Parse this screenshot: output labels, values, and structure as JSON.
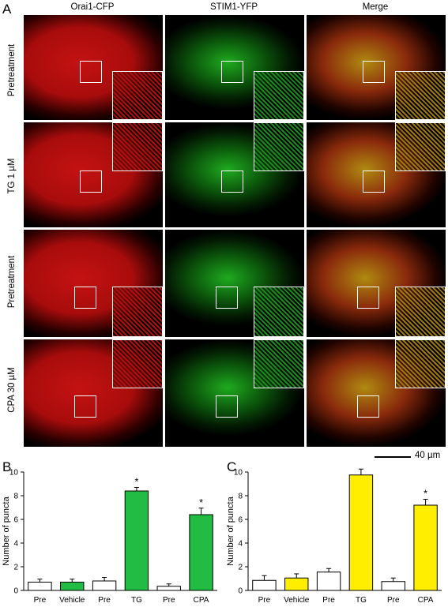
{
  "figure": {
    "panel_a_letter": "A",
    "panel_b_letter": "B",
    "panel_c_letter": "C",
    "column_headers": [
      "Orai1-CFP",
      "STIM1-YFP",
      "Merge"
    ],
    "row_labels": [
      "Pretreatment",
      "TG 1 µM",
      "Pretreatment",
      "CPA 30 µM"
    ],
    "scale_bar_label": "40 µm",
    "colors": {
      "orai1_red": "#d41a1a",
      "stim1_green": "#2bd12b",
      "merge_yellow": "#c8b020",
      "bar_green": "#22bb44",
      "bar_yellow": "#ffee00",
      "bar_white": "#ffffff"
    }
  },
  "chart_data": [
    {
      "panel": "B",
      "type": "bar",
      "categories": [
        "Pre",
        "Vehicle",
        "Pre",
        "TG",
        "Pre",
        "CPA"
      ],
      "values": [
        0.7,
        0.7,
        0.8,
        8.4,
        0.35,
        6.4
      ],
      "errors": [
        0.25,
        0.25,
        0.3,
        0.3,
        0.2,
        0.55
      ],
      "significance": [
        "",
        "",
        "",
        "*",
        "",
        "*"
      ],
      "bar_colors": [
        "#ffffff",
        "#22bb44",
        "#ffffff",
        "#22bb44",
        "#ffffff",
        "#22bb44"
      ],
      "ylabel": "Number of puncta",
      "ylim": [
        0,
        10
      ],
      "yticks": [
        0,
        2,
        4,
        6,
        8,
        10
      ]
    },
    {
      "panel": "C",
      "type": "bar",
      "categories": [
        "Pre",
        "Vehicle",
        "Pre",
        "TG",
        "Pre",
        "CPA"
      ],
      "values": [
        0.85,
        1.05,
        1.55,
        9.75,
        0.75,
        7.2
      ],
      "errors": [
        0.4,
        0.35,
        0.3,
        0.5,
        0.3,
        0.5
      ],
      "significance": [
        "",
        "",
        "",
        "*",
        "",
        "*"
      ],
      "bar_colors": [
        "#ffffff",
        "#ffee00",
        "#ffffff",
        "#ffee00",
        "#ffffff",
        "#ffee00"
      ],
      "ylabel": "Number of puncta",
      "ylim": [
        0,
        10
      ],
      "yticks": [
        0,
        2,
        4,
        6,
        8,
        10
      ]
    }
  ]
}
